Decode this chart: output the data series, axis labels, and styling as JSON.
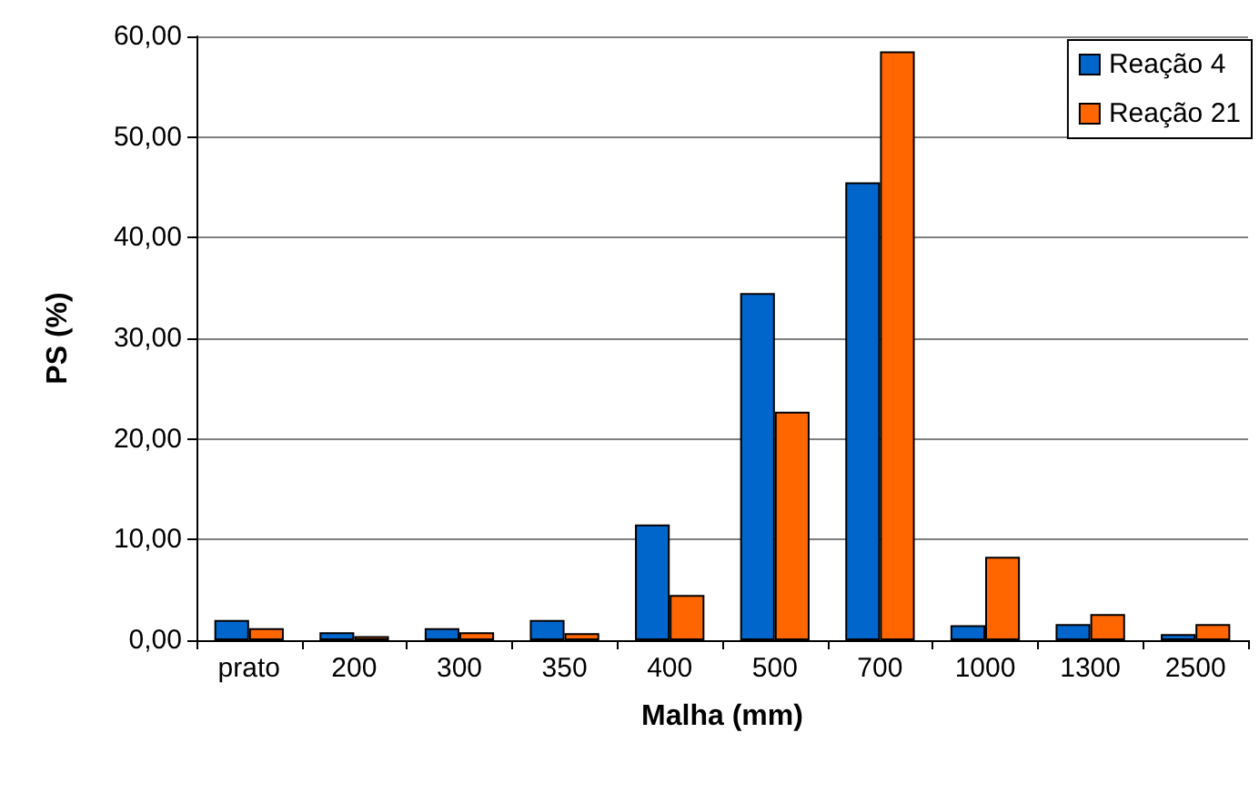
{
  "chart_data": {
    "type": "bar",
    "xlabel": "Malha (mm)",
    "ylabel": "PS (%)",
    "categories": [
      "prato",
      "200",
      "300",
      "350",
      "400",
      "500",
      "700",
      "1000",
      "1300",
      "2500"
    ],
    "series": [
      {
        "name": "Reação 4",
        "color": "#0066cc",
        "values": [
          2.0,
          0.8,
          1.2,
          2.0,
          11.5,
          34.5,
          45.5,
          1.5,
          1.6,
          0.6
        ]
      },
      {
        "name": "Reação 21",
        "color": "#ff6600",
        "values": [
          1.2,
          0.4,
          0.8,
          0.7,
          4.5,
          22.7,
          58.5,
          8.3,
          2.6,
          1.6
        ]
      }
    ],
    "ylim": [
      0,
      60
    ],
    "yticks": [
      {
        "value": 0,
        "label": "0,00"
      },
      {
        "value": 10,
        "label": "10,00"
      },
      {
        "value": 20,
        "label": "20,00"
      },
      {
        "value": 30,
        "label": "30,00"
      },
      {
        "value": 40,
        "label": "40,00"
      },
      {
        "value": 50,
        "label": "50,00"
      },
      {
        "value": 60,
        "label": "60,00"
      }
    ],
    "grid": "y",
    "legend": "top right"
  }
}
